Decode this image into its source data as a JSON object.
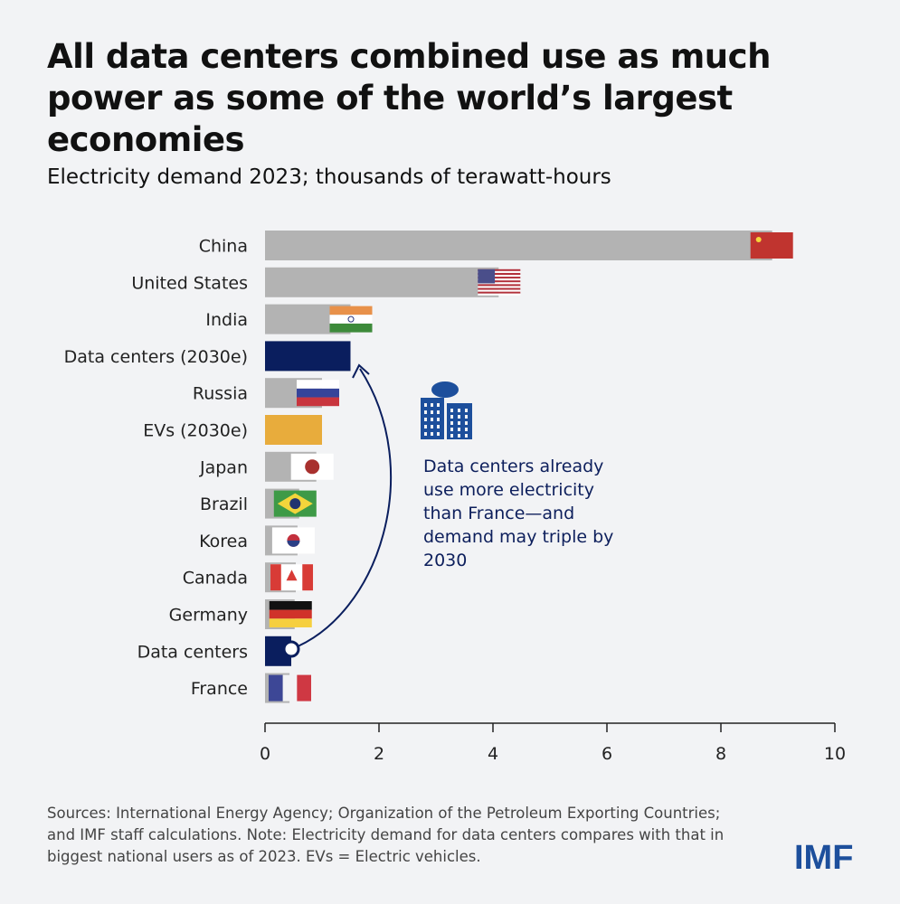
{
  "title": "All data centers combined use as much power as some of the world’s largest economies",
  "subtitle": "Electricity demand 2023; thousands of terawatt-hours",
  "annotation": "Data centers already use more electricity than France—and demand may triple by 2030",
  "note": "Sources: International Energy Agency; Organization of the Petroleum Exporting Countries; and IMF staff calculations. Note: Electricity demand for data centers compares with that in biggest national users as of 2023. EVs = Electric vehicles.",
  "logo": "IMF",
  "colors": {
    "country": "#b3b3b3",
    "datacenters": "#0a1e5e",
    "evs": "#e8ac3c"
  },
  "chart_data": {
    "type": "bar",
    "orientation": "horizontal",
    "title": "Electricity demand 2023; thousands of terawatt-hours",
    "xlim": [
      0,
      10
    ],
    "xticks": [
      "0",
      "2",
      "4",
      "6",
      "8",
      "10"
    ],
    "categories": [
      "China",
      "United States",
      "India",
      "Data centers (2030e)",
      "Russia",
      "EVs (2030e)",
      "Japan",
      "Brazil",
      "Korea",
      "Canada",
      "Germany",
      "Data centers",
      "France"
    ],
    "values": [
      8.9,
      4.1,
      1.5,
      1.5,
      1.0,
      1.0,
      0.9,
      0.6,
      0.57,
      0.54,
      0.52,
      0.46,
      0.43
    ],
    "kinds": [
      "country",
      "country",
      "country",
      "datacenters",
      "country",
      "evs",
      "country",
      "country",
      "country",
      "country",
      "country",
      "datacenters",
      "country"
    ],
    "flags": [
      "china",
      "usa",
      "india",
      null,
      "russia",
      null,
      "japan",
      "brazil",
      "korea",
      "canada",
      "germany",
      null,
      "france"
    ]
  }
}
